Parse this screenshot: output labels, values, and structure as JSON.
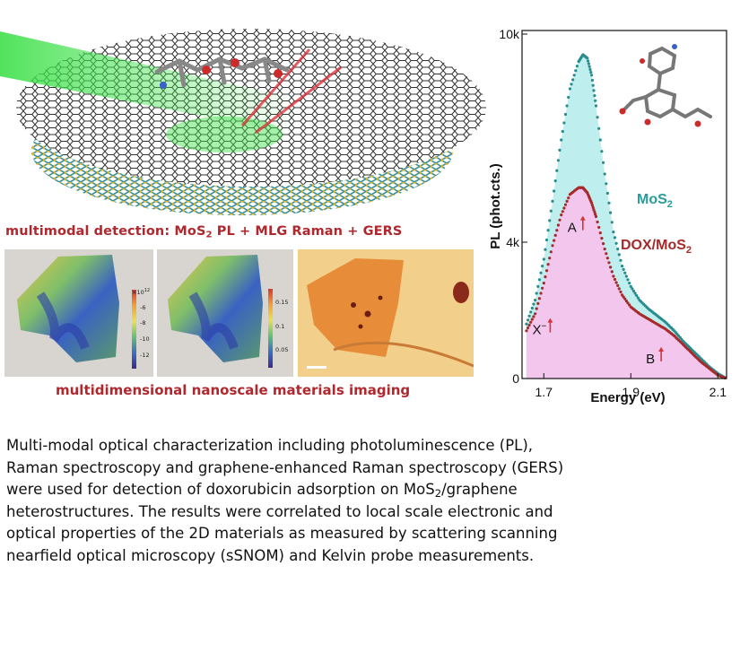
{
  "figure": {
    "caption_top_prefix": "multimodal detection: MoS",
    "caption_top_sub": "2",
    "caption_top_suffix": " PL + MLG Raman + GERS",
    "caption_bottom": "multidimensional nanoscale materials imaging",
    "panel1": {
      "colorbar_exponent": "×10",
      "colorbar_exponent_power": "12",
      "colorbar_ticks": [
        "-6",
        "-8",
        "-10",
        "-12"
      ]
    },
    "panel2": {
      "colorbar_ticks": [
        "0.15",
        "0.1",
        "0.05"
      ]
    }
  },
  "chart_data": {
    "type": "line",
    "ylabel": "PL (phot.cts.)",
    "xlabel": "Energy (eV)",
    "xlim": [
      1.65,
      2.12
    ],
    "ylim": [
      0,
      10000
    ],
    "xticks": [
      {
        "value": 1.7,
        "label": "1.7"
      },
      {
        "value": 1.9,
        "label": "1.9"
      },
      {
        "value": 2.1,
        "label": "2.1"
      }
    ],
    "yticks": [
      {
        "value": 0,
        "label": "0"
      },
      {
        "value": 4000,
        "label": "4k"
      },
      {
        "value": 10000,
        "label": "10k"
      }
    ],
    "grid": false,
    "series": [
      {
        "name": "MoS2",
        "label_main": "MoS",
        "label_sub": "2",
        "color": "#2a8c8c",
        "fill": "#bfeeee",
        "x": [
          1.66,
          1.68,
          1.7,
          1.72,
          1.74,
          1.76,
          1.78,
          1.79,
          1.8,
          1.81,
          1.82,
          1.84,
          1.86,
          1.88,
          1.9,
          1.92,
          1.94,
          1.96,
          1.98,
          2.0,
          2.02,
          2.04,
          2.06,
          2.08,
          2.1,
          2.12
        ],
        "values": [
          1600,
          2300,
          3500,
          5200,
          7000,
          8500,
          9300,
          9500,
          9400,
          8900,
          8000,
          6000,
          4300,
          3300,
          2700,
          2300,
          2050,
          1850,
          1650,
          1400,
          1100,
          850,
          600,
          350,
          150,
          0
        ]
      },
      {
        "name": "DOX/MoS2",
        "label_main": "DOX/MoS",
        "label_sub": "2",
        "color": "#a62a2a",
        "fill": "#f3c6ee",
        "x": [
          1.66,
          1.68,
          1.7,
          1.72,
          1.74,
          1.76,
          1.78,
          1.79,
          1.8,
          1.81,
          1.82,
          1.84,
          1.86,
          1.88,
          1.9,
          1.92,
          1.94,
          1.96,
          1.98,
          2.0,
          2.02,
          2.04,
          2.06,
          2.08,
          2.1,
          2.12
        ],
        "values": [
          1400,
          1900,
          2800,
          3900,
          4800,
          5400,
          5600,
          5600,
          5450,
          5150,
          4750,
          3800,
          3000,
          2450,
          2100,
          1900,
          1750,
          1600,
          1450,
          1250,
          1000,
          750,
          500,
          300,
          100,
          0
        ]
      }
    ],
    "annotations": [
      {
        "text": "A",
        "x": 1.765,
        "y": 4300
      },
      {
        "text": "B",
        "x": 1.945,
        "y": 450
      },
      {
        "text": "X",
        "sup": "−",
        "x": 1.69,
        "y": 1300
      }
    ]
  },
  "description": {
    "line1": "Multi-modal optical characterization including photoluminescence (PL),",
    "line2": "Raman spectroscopy and graphene-enhanced Raman spectroscopy (GERS)",
    "line3_prefix": "were used for detection of doxorubicin adsorption on MoS",
    "line3_sub": "2",
    "line3_suffix": "/graphene",
    "line4": "heterostructures. The results were correlated to local scale electronic and",
    "line5": "optical properties of the 2D materials as measured by scattering scanning",
    "line6": "nearfield optical microscopy (sSNOM) and Kelvin probe measurements."
  }
}
